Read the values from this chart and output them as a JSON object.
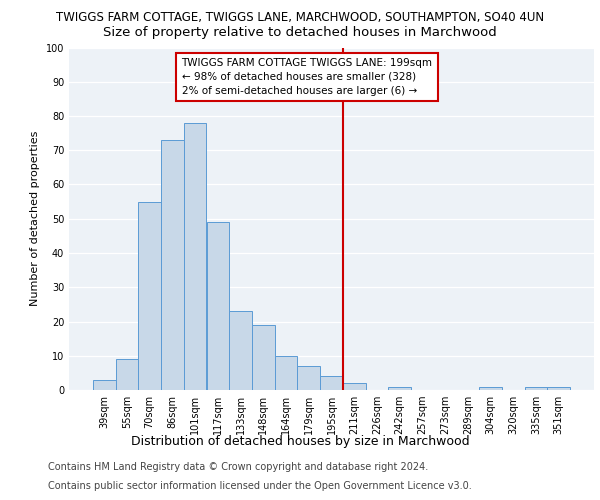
{
  "title_line1": "TWIGGS FARM COTTAGE, TWIGGS LANE, MARCHWOOD, SOUTHAMPTON, SO40 4UN",
  "title_line2": "Size of property relative to detached houses in Marchwood",
  "xlabel": "Distribution of detached houses by size in Marchwood",
  "ylabel": "Number of detached properties",
  "categories": [
    "39sqm",
    "55sqm",
    "70sqm",
    "86sqm",
    "101sqm",
    "117sqm",
    "133sqm",
    "148sqm",
    "164sqm",
    "179sqm",
    "195sqm",
    "211sqm",
    "226sqm",
    "242sqm",
    "257sqm",
    "273sqm",
    "289sqm",
    "304sqm",
    "320sqm",
    "335sqm",
    "351sqm"
  ],
  "values": [
    3,
    9,
    55,
    73,
    78,
    49,
    23,
    19,
    10,
    7,
    4,
    2,
    0,
    1,
    0,
    0,
    0,
    1,
    0,
    1,
    1
  ],
  "bar_color": "#c8d8e8",
  "bar_edge_color": "#5b9bd5",
  "annotation_line1": "TWIGGS FARM COTTAGE TWIGGS LANE: 199sqm",
  "annotation_line2": "← 98% of detached houses are smaller (328)",
  "annotation_line3": "2% of semi-detached houses are larger (6) →",
  "annotation_box_color": "#ffffff",
  "annotation_box_edge": "#cc0000",
  "vline_color": "#cc0000",
  "ylim": [
    0,
    100
  ],
  "yticks": [
    0,
    10,
    20,
    30,
    40,
    50,
    60,
    70,
    80,
    90,
    100
  ],
  "background_color": "#edf2f7",
  "footer_line1": "Contains HM Land Registry data © Crown copyright and database right 2024.",
  "footer_line2": "Contains public sector information licensed under the Open Government Licence v3.0.",
  "title_fontsize": 8.5,
  "subtitle_fontsize": 9.5,
  "xlabel_fontsize": 9,
  "ylabel_fontsize": 8,
  "tick_fontsize": 7,
  "footer_fontsize": 7,
  "annotation_fontsize": 7.5
}
